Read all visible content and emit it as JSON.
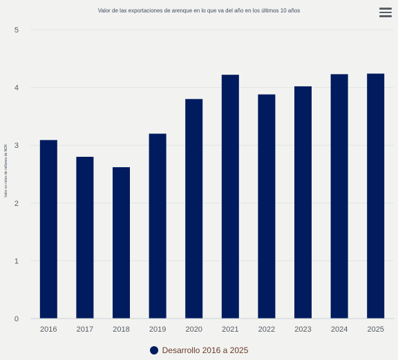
{
  "colors": {
    "series": "#001b5e",
    "legend_text": "#6a3b2a"
  },
  "menu": {
    "icon": "hamburger-menu-icon"
  },
  "chart_data": {
    "type": "bar",
    "title": "Valor de las exportaciones de arenque en lo que va del año en los últimos 10 años",
    "xlabel": "",
    "ylabel": "Valor en miles de millones de NOK",
    "categories": [
      "2016",
      "2017",
      "2018",
      "2019",
      "2020",
      "2021",
      "2022",
      "2023",
      "2024",
      "2025"
    ],
    "series": [
      {
        "name": "Desarrollo 2016 a 2025",
        "values": [
          3.09,
          2.8,
          2.62,
          3.2,
          3.8,
          4.22,
          3.88,
          4.02,
          4.23,
          4.24
        ]
      }
    ],
    "ylim": [
      0,
      5
    ],
    "yticks": [
      "0",
      "1",
      "2",
      "3",
      "4",
      "5"
    ],
    "grid": true,
    "legend": "bottom-center"
  }
}
